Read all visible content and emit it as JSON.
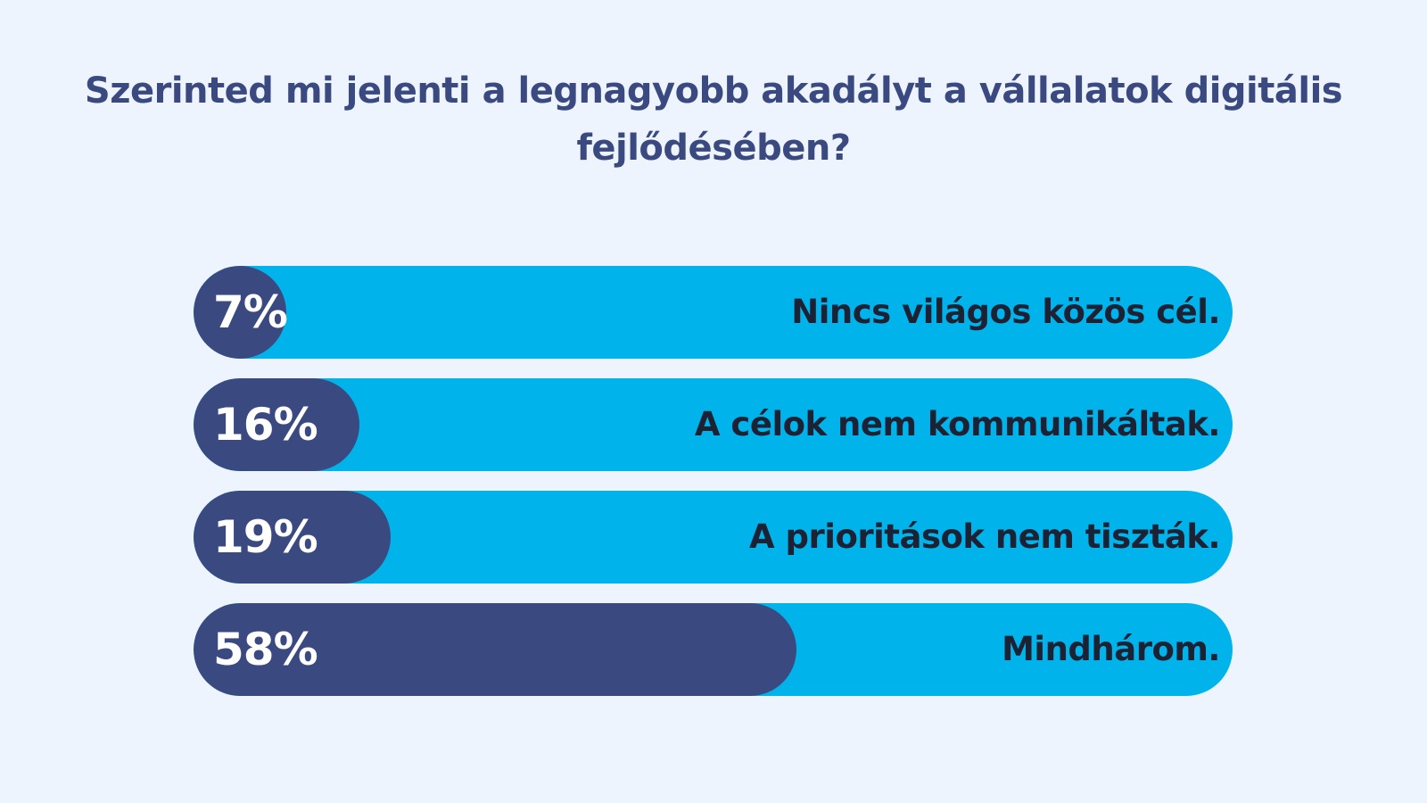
{
  "title": "Szerinted mi jelenti a legnagyobb akadályt a vállalatok digitális fejlődésében?",
  "colors": {
    "background": "#eef4fe",
    "title": "#3a4a80",
    "track": "#00b4eb",
    "fill": "#3a4a80",
    "percent_text": "#ffffff",
    "label_text": "#1c2233"
  },
  "chart_data": {
    "type": "bar",
    "orientation": "horizontal",
    "title": "Szerinted mi jelenti a legnagyobb akadályt a vállalatok digitális fejlődésében?",
    "xlim": [
      0,
      100
    ],
    "unit": "%",
    "categories": [
      "Nincs világos közös cél.",
      "A célok nem kommunikáltak.",
      "A prioritások nem tiszták.",
      "Mindhárom."
    ],
    "values": [
      7,
      16,
      19,
      58
    ],
    "value_labels": [
      "7%",
      "16%",
      "19%",
      "58%"
    ]
  }
}
